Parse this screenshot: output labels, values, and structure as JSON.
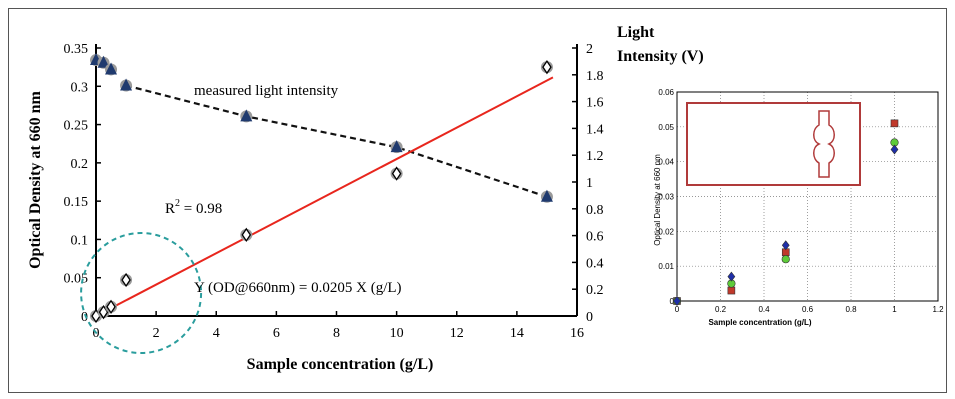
{
  "chart_data": [
    {
      "type": "scatter",
      "xlabel": "Sample concentration (g/L)",
      "ylabel": "Optical Density at 660 nm",
      "y2label_line1": "Light",
      "y2label_line2": "Intensity (V)",
      "xlim": [
        0,
        16
      ],
      "ylim": [
        0,
        0.35
      ],
      "y2lim": [
        0,
        2
      ],
      "xticks": [
        "0",
        "2",
        "4",
        "6",
        "8",
        "10",
        "12",
        "14",
        "16"
      ],
      "yticks": [
        "0",
        "0.05",
        "0.1",
        "0.15",
        "0.2",
        "0.25",
        "0.3",
        "0.35"
      ],
      "y2ticks": [
        "0",
        "0.2",
        "0.4",
        "0.6",
        "0.8",
        "1",
        "1.2",
        "1.4",
        "1.6",
        "1.8",
        "2"
      ],
      "series": [
        {
          "name": "",
          "axis": "left",
          "marker": "circle-diamond",
          "x": [
            0,
            0.25,
            0.5,
            1,
            5,
            10,
            15
          ],
          "y": [
            0.0,
            0.005,
            0.012,
            0.047,
            0.106,
            0.186,
            0.325
          ]
        },
        {
          "name": "",
          "axis": "right",
          "marker": "circle-triangle",
          "x": [
            0,
            0.25,
            0.5,
            1,
            5,
            10,
            15
          ],
          "y": [
            1.91,
            1.89,
            1.84,
            1.72,
            1.49,
            1.26,
            0.89
          ]
        }
      ],
      "fit_line": {
        "slope": 0.0205,
        "x0": 0,
        "x1": 15.2,
        "color": "#e8261d"
      },
      "trend_line": {
        "x": [
          1,
          5,
          10,
          15
        ],
        "y2": [
          1.72,
          1.49,
          1.26,
          0.89
        ]
      },
      "annotations": {
        "measured": "measured light intensity",
        "r2_base": "R",
        "r2_sup": "2",
        "r2_value": " = 0.98",
        "equation": "Y (OD@660nm) = 0.0205 X (g/L)"
      },
      "highlight_circle": {
        "cx": 1.5,
        "cy": 0.03,
        "color": "#2a9d9d"
      }
    },
    {
      "type": "scatter",
      "xlabel": "Sample concentration (g/L)",
      "ylabel": "Optical Density at 660 nm",
      "xlim": [
        0,
        1.2
      ],
      "ylim": [
        0,
        0.06
      ],
      "xticks": [
        "0",
        "0.2",
        "0.4",
        "0.6",
        "0.8",
        "1",
        "1.2"
      ],
      "yticks": [
        "0",
        "0.01",
        "0.02",
        "0.03",
        "0.04",
        "0.05",
        "0.06"
      ],
      "grid": true,
      "series": [
        {
          "name": "",
          "marker": "square",
          "color": "#c0392b",
          "x": [
            0,
            0.25,
            0.5,
            1
          ],
          "y": [
            0,
            0.003,
            0.014,
            0.051
          ]
        },
        {
          "name": "",
          "marker": "circle",
          "color": "#5ecb3a",
          "x": [
            0,
            0.25,
            0.5,
            1
          ],
          "y": [
            0,
            0.005,
            0.012,
            0.0455
          ]
        },
        {
          "name": "",
          "marker": "diamond",
          "color": "#1f2fa8",
          "x": [
            0,
            0.25,
            0.5,
            1
          ],
          "y": [
            0,
            0.007,
            0.016,
            0.0435
          ]
        }
      ],
      "inset_color": "#b03a3a"
    }
  ]
}
